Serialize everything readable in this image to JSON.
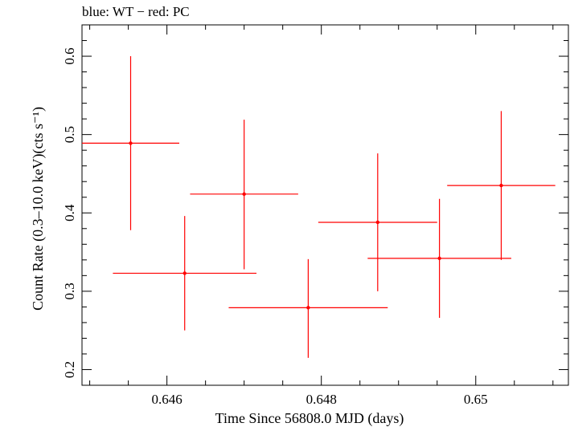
{
  "chart_data": {
    "type": "scatter",
    "title": "blue: WT − red: PC",
    "xlabel": "Time Since 56808.0 MJD (days)",
    "ylabel": "Count Rate (0.3–10.0 keV)(cts s⁻¹)",
    "xlim": [
      0.6449,
      0.6512
    ],
    "ylim": [
      0.18,
      0.64
    ],
    "x_ticks": [
      0.646,
      0.648,
      0.65
    ],
    "x_tick_labels": [
      "0.646",
      "0.648",
      "0.65"
    ],
    "y_ticks": [
      0.2,
      0.3,
      0.4,
      0.5,
      0.6
    ],
    "y_tick_labels": [
      "0.2",
      "0.3",
      "0.4",
      "0.5",
      "0.6"
    ],
    "grid": false,
    "series": [
      {
        "color": "#ff0000",
        "points": [
          {
            "x": 0.64553,
            "y": 0.489,
            "xerr": 0.00063,
            "ylo": 0.378,
            "yhi": 0.6
          },
          {
            "x": 0.64623,
            "y": 0.323,
            "xerr": 0.00093,
            "ylo": 0.25,
            "yhi": 0.396
          },
          {
            "x": 0.647,
            "y": 0.424,
            "xerr": 0.0007,
            "ylo": 0.328,
            "yhi": 0.519
          },
          {
            "x": 0.64783,
            "y": 0.279,
            "xerr": 0.00103,
            "ylo": 0.215,
            "yhi": 0.341
          },
          {
            "x": 0.64873,
            "y": 0.388,
            "xerr": 0.00077,
            "ylo": 0.3,
            "yhi": 0.476
          },
          {
            "x": 0.64953,
            "y": 0.342,
            "xerr": 0.00093,
            "ylo": 0.266,
            "yhi": 0.418
          },
          {
            "x": 0.65033,
            "y": 0.435,
            "xerr": 0.0007,
            "ylo": 0.34,
            "yhi": 0.53
          }
        ]
      }
    ]
  }
}
